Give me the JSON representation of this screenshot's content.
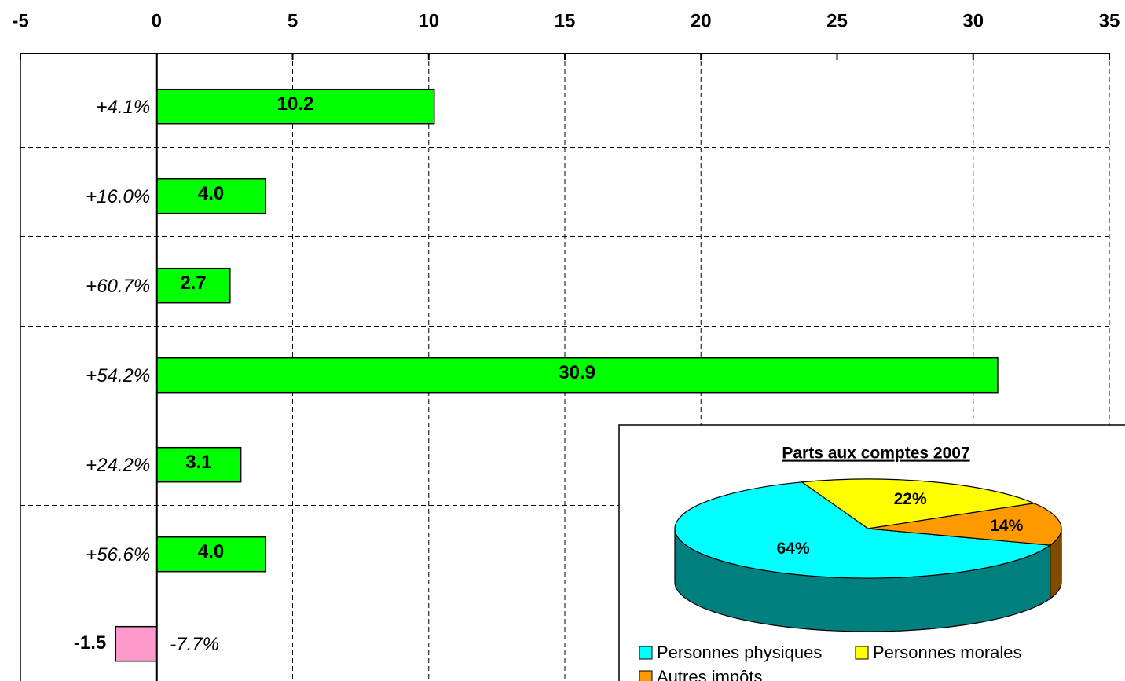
{
  "chart_data": [
    {
      "type": "hbar",
      "categories": [
        "+4.1%",
        "+16.0%",
        "+60.7%",
        "+54.2%",
        "+24.2%",
        "+56.6%",
        "-7.7%"
      ],
      "values": [
        10.2,
        4.0,
        2.7,
        30.9,
        3.1,
        4.0,
        -1.5
      ],
      "value_labels": [
        "10.2",
        "4.0",
        "2.7",
        "30.9",
        "3.1",
        "4.0",
        "-1.5"
      ],
      "color": "#00ff00",
      "negative_color": "#ff99cc",
      "xlim": [
        -5,
        35
      ],
      "xticks": [
        -5,
        0,
        5,
        10,
        15,
        20,
        25,
        30,
        35
      ],
      "grid": true
    },
    {
      "type": "pie",
      "title": "Parts aux comptes 2007",
      "categories": [
        "Personnes physiques",
        "Personnes morales",
        "Autres impôts"
      ],
      "values": [
        64,
        22,
        14
      ],
      "value_labels": [
        "64%",
        "22%",
        "14%"
      ],
      "colors": [
        "#00ffff",
        "#ffff00",
        "#ff9900"
      ]
    }
  ]
}
